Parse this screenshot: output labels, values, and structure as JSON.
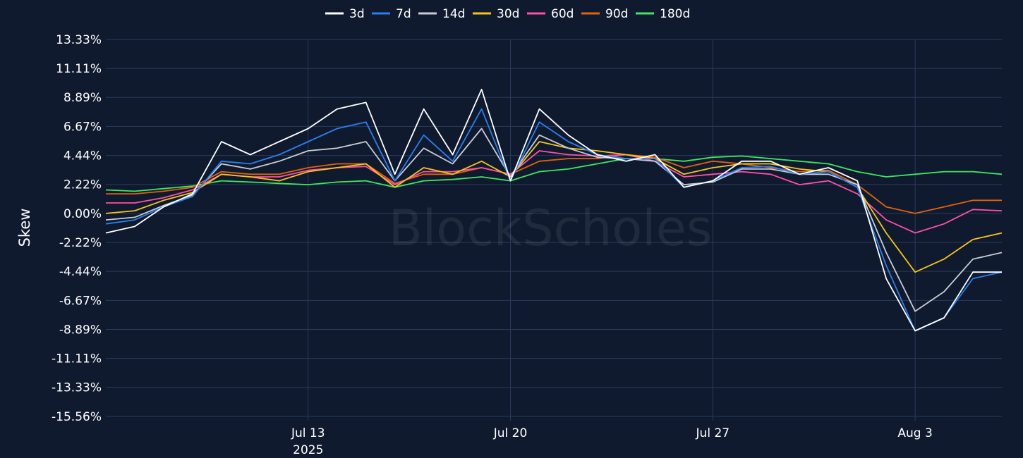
{
  "chart_data": {
    "type": "line",
    "title": "",
    "xlabel": "",
    "ylabel": "Skew",
    "watermark": "BlockScholes",
    "legend_position": "top-center",
    "grid": true,
    "colors": {
      "background": "#0f1a2e",
      "grid": "#2a3a5a"
    },
    "x_range": [
      "2025-07-06T00:00",
      "2025-08-06T00:00"
    ],
    "ylim": [
      -15.56,
      13.33
    ],
    "y_ticks": [
      13.33,
      11.11,
      8.89,
      6.67,
      4.44,
      2.22,
      0.0,
      -2.22,
      -4.44,
      -6.67,
      -8.89,
      -11.11,
      -13.33,
      -15.56
    ],
    "y_tick_labels": [
      "13.33%",
      "11.11%",
      "8.89%",
      "6.67%",
      "4.44%",
      "2.22%",
      "0.00%",
      "-2.22%",
      "-4.44%",
      "-6.67%",
      "-8.89%",
      "-11.11%",
      "-13.33%",
      "-15.56%"
    ],
    "x_ticks": [
      {
        "date": "2025-07-13",
        "label": "Jul 13",
        "sublabel": "2025"
      },
      {
        "date": "2025-07-20",
        "label": "Jul 20",
        "sublabel": ""
      },
      {
        "date": "2025-07-27",
        "label": "Jul 27",
        "sublabel": ""
      },
      {
        "date": "2025-08-03",
        "label": "Aug 3",
        "sublabel": ""
      }
    ],
    "x": [
      "2025-07-06",
      "2025-07-07",
      "2025-07-08",
      "2025-07-09",
      "2025-07-10",
      "2025-07-11",
      "2025-07-12",
      "2025-07-13",
      "2025-07-14",
      "2025-07-15",
      "2025-07-16",
      "2025-07-17",
      "2025-07-18",
      "2025-07-19",
      "2025-07-20",
      "2025-07-21",
      "2025-07-22",
      "2025-07-23",
      "2025-07-24",
      "2025-07-25",
      "2025-07-26",
      "2025-07-27",
      "2025-07-28",
      "2025-07-29",
      "2025-07-30",
      "2025-07-31",
      "2025-08-01",
      "2025-08-02",
      "2025-08-03",
      "2025-08-04",
      "2025-08-05",
      "2025-08-06"
    ],
    "series": [
      {
        "name": "3d",
        "color": "#ffffff",
        "values": [
          -1.5,
          -1.0,
          0.5,
          1.5,
          5.5,
          4.5,
          5.5,
          6.5,
          8.0,
          8.5,
          3.0,
          8.0,
          4.5,
          9.5,
          2.5,
          8.0,
          6.0,
          4.5,
          4.0,
          4.5,
          2.0,
          2.5,
          4.0,
          4.0,
          3.0,
          3.5,
          2.5,
          -5.0,
          -9.0,
          -8.0,
          -4.5,
          -4.5
        ]
      },
      {
        "name": "7d",
        "color": "#2a7ff0",
        "values": [
          -0.8,
          -0.5,
          0.5,
          1.3,
          4.0,
          3.8,
          4.5,
          5.5,
          6.5,
          7.0,
          2.5,
          6.0,
          4.0,
          8.0,
          2.5,
          7.0,
          5.5,
          4.5,
          4.2,
          4.2,
          2.0,
          2.5,
          3.5,
          3.6,
          3.0,
          3.2,
          2.0,
          -4.0,
          -9.0,
          -8.0,
          -5.0,
          -4.5
        ]
      },
      {
        "name": "14d",
        "color": "#c8ccd4",
        "values": [
          -0.5,
          -0.3,
          0.6,
          1.4,
          3.8,
          3.4,
          4.0,
          4.8,
          5.0,
          5.5,
          2.5,
          5.0,
          3.8,
          6.5,
          2.8,
          6.0,
          5.0,
          4.3,
          4.2,
          4.0,
          2.2,
          2.4,
          3.4,
          3.4,
          3.0,
          3.0,
          2.2,
          -3.0,
          -7.5,
          -6.0,
          -3.5,
          -3.0
        ]
      },
      {
        "name": "30d",
        "color": "#f5c518",
        "values": [
          0.0,
          0.2,
          1.0,
          1.6,
          3.0,
          2.8,
          2.5,
          3.2,
          3.5,
          3.8,
          2.0,
          3.5,
          3.0,
          4.0,
          2.8,
          5.5,
          5.0,
          4.8,
          4.5,
          4.2,
          3.0,
          3.5,
          3.8,
          3.8,
          3.4,
          3.2,
          2.0,
          -1.5,
          -4.5,
          -3.5,
          -2.0,
          -1.5
        ]
      },
      {
        "name": "60d",
        "color": "#ff4fa8",
        "values": [
          0.8,
          0.8,
          1.2,
          1.8,
          3.0,
          2.8,
          2.8,
          3.3,
          3.5,
          3.6,
          2.2,
          3.2,
          3.2,
          3.5,
          3.0,
          4.8,
          4.5,
          4.4,
          4.5,
          4.0,
          2.8,
          3.0,
          3.2,
          3.0,
          2.2,
          2.5,
          1.5,
          -0.5,
          -1.5,
          -0.8,
          0.3,
          0.2
        ]
      },
      {
        "name": "90d",
        "color": "#e0620e",
        "values": [
          1.5,
          1.5,
          1.7,
          2.0,
          3.2,
          3.0,
          3.0,
          3.5,
          3.8,
          3.8,
          2.3,
          3.0,
          3.0,
          3.5,
          3.0,
          4.0,
          4.2,
          4.2,
          4.5,
          4.3,
          3.5,
          4.0,
          3.8,
          3.5,
          3.2,
          3.3,
          2.2,
          0.5,
          0.0,
          0.5,
          1.0,
          1.0
        ]
      },
      {
        "name": "180d",
        "color": "#3ce860",
        "values": [
          1.8,
          1.7,
          1.9,
          2.1,
          2.5,
          2.4,
          2.3,
          2.2,
          2.4,
          2.5,
          2.0,
          2.5,
          2.6,
          2.8,
          2.5,
          3.2,
          3.4,
          3.8,
          4.2,
          4.2,
          4.0,
          4.3,
          4.4,
          4.2,
          4.0,
          3.8,
          3.2,
          2.8,
          3.0,
          3.2,
          3.2,
          3.0
        ]
      }
    ]
  }
}
